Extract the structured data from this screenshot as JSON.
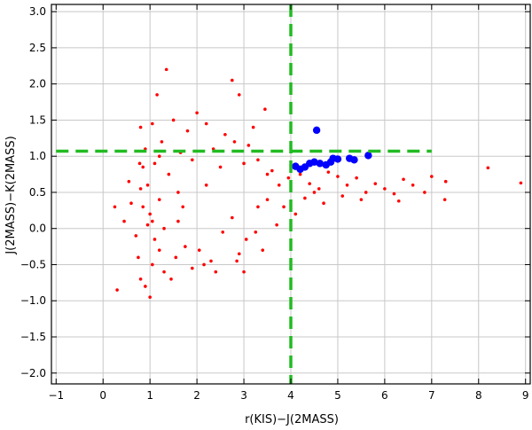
{
  "chart_data": {
    "type": "scatter",
    "title": "",
    "xlabel": "r(KIS)−J(2MASS)",
    "ylabel": "J(2MASS)−K(2MASS)",
    "xlim": [
      -1.1,
      9.1
    ],
    "ylim": [
      -2.15,
      3.1
    ],
    "x_ticks": [
      -1,
      0,
      1,
      2,
      3,
      4,
      5,
      6,
      7,
      8,
      9
    ],
    "x_tick_labels": [
      "−1",
      "0",
      "1",
      "2",
      "3",
      "4",
      "5",
      "6",
      "7",
      "8",
      "9"
    ],
    "y_ticks": [
      3.0,
      2.5,
      2.0,
      1.5,
      1.0,
      0.5,
      0.0,
      -0.5,
      -1.0,
      -1.5,
      -2.0
    ],
    "y_tick_labels": [
      "3.0",
      "2.5",
      "2.0",
      "1.5",
      "1.0",
      "0.5",
      "0.0",
      "−0.5",
      "−1.0",
      "−1.5",
      "−2.0"
    ],
    "grid": true,
    "colors": {
      "field": "#ff0000",
      "selected": "#0000ff",
      "cut": "#22bb22",
      "grid": "#c8c8c8"
    },
    "cuts": {
      "vertical_x": 4.0,
      "horizontal_y": 1.07,
      "horizontal_xrange": [
        -1.0,
        7.0
      ]
    },
    "series": [
      {
        "role": "field",
        "points": [
          [
            1.35,
            2.2
          ],
          [
            2.75,
            2.05
          ],
          [
            1.15,
            1.85
          ],
          [
            2.9,
            1.85
          ],
          [
            3.45,
            1.65
          ],
          [
            2.2,
            1.45
          ],
          [
            1.05,
            1.45
          ],
          [
            1.5,
            1.5
          ],
          [
            0.8,
            1.4
          ],
          [
            3.2,
            1.4
          ],
          [
            0.55,
            0.65
          ],
          [
            0.25,
            0.3
          ],
          [
            0.3,
            -0.85
          ],
          [
            0.45,
            0.1
          ],
          [
            0.6,
            0.35
          ],
          [
            0.7,
            -0.1
          ],
          [
            0.75,
            -0.4
          ],
          [
            0.8,
            -0.7
          ],
          [
            0.9,
            -0.8
          ],
          [
            1.0,
            -0.95
          ],
          [
            1.05,
            -0.5
          ],
          [
            1.2,
            -0.3
          ],
          [
            1.3,
            -0.6
          ],
          [
            1.45,
            -0.7
          ],
          [
            1.55,
            -0.4
          ],
          [
            1.75,
            -0.25
          ],
          [
            1.9,
            -0.55
          ],
          [
            2.05,
            -0.3
          ],
          [
            2.3,
            -0.45
          ],
          [
            2.55,
            -0.05
          ],
          [
            2.75,
            0.15
          ],
          [
            2.85,
            -0.45
          ],
          [
            3.05,
            -0.15
          ],
          [
            3.25,
            -0.05
          ],
          [
            3.3,
            0.3
          ],
          [
            3.5,
            0.4
          ],
          [
            3.7,
            0.05
          ],
          [
            2.15,
            -0.5
          ],
          [
            2.4,
            -0.6
          ],
          [
            3.0,
            -0.6
          ],
          [
            1.1,
            -0.15
          ],
          [
            0.95,
            0.05
          ],
          [
            1.6,
            0.1
          ],
          [
            1.7,
            0.3
          ],
          [
            3.4,
            -0.3
          ],
          [
            2.9,
            -0.35
          ],
          [
            3.75,
            0.6
          ],
          [
            3.95,
            0.7
          ],
          [
            4.2,
            0.75
          ],
          [
            4.4,
            0.62
          ],
          [
            4.6,
            0.55
          ],
          [
            4.8,
            0.78
          ],
          [
            5.0,
            0.72
          ],
          [
            5.2,
            0.6
          ],
          [
            5.4,
            0.7
          ],
          [
            5.6,
            0.5
          ],
          [
            5.8,
            0.62
          ],
          [
            6.0,
            0.55
          ],
          [
            6.2,
            0.48
          ],
          [
            6.4,
            0.68
          ],
          [
            6.6,
            0.6
          ],
          [
            6.85,
            0.5
          ],
          [
            7.0,
            0.72
          ],
          [
            7.3,
            0.65
          ],
          [
            7.28,
            0.4
          ],
          [
            8.2,
            0.84
          ],
          [
            8.9,
            0.63
          ],
          [
            4.3,
            0.42
          ],
          [
            4.7,
            0.35
          ],
          [
            5.1,
            0.45
          ],
          [
            5.5,
            0.4
          ],
          [
            6.3,
            0.38
          ],
          [
            4.1,
            0.2
          ],
          [
            3.85,
            0.3
          ],
          [
            4.5,
            0.5
          ],
          [
            3.6,
            0.8
          ],
          [
            3.3,
            0.95
          ],
          [
            3.1,
            1.15
          ],
          [
            2.6,
            1.3
          ],
          [
            2.0,
            1.6
          ],
          [
            1.8,
            1.35
          ],
          [
            1.25,
            1.2
          ],
          [
            0.9,
            1.1
          ],
          [
            0.85,
            0.85
          ],
          [
            0.8,
            0.55
          ],
          [
            0.85,
            0.3
          ],
          [
            0.95,
            0.6
          ],
          [
            1.1,
            0.9
          ],
          [
            1.4,
            0.75
          ],
          [
            1.9,
            0.95
          ],
          [
            2.5,
            0.85
          ],
          [
            3.0,
            0.9
          ],
          [
            3.5,
            0.75
          ],
          [
            2.2,
            0.6
          ],
          [
            1.6,
            0.5
          ],
          [
            1.2,
            0.4
          ],
          [
            1.0,
            0.2
          ],
          [
            1.3,
            0.0
          ],
          [
            1.05,
            0.1
          ],
          [
            0.78,
            0.9
          ],
          [
            1.2,
            1.0
          ],
          [
            1.65,
            1.05
          ],
          [
            2.35,
            1.1
          ],
          [
            2.8,
            1.2
          ]
        ]
      },
      {
        "role": "selected",
        "points": [
          [
            4.1,
            0.86
          ],
          [
            4.2,
            0.82
          ],
          [
            4.3,
            0.85
          ],
          [
            4.4,
            0.9
          ],
          [
            4.5,
            0.92
          ],
          [
            4.62,
            0.9
          ],
          [
            4.75,
            0.88
          ],
          [
            4.85,
            0.92
          ],
          [
            4.9,
            0.97
          ],
          [
            5.0,
            0.96
          ],
          [
            5.25,
            0.97
          ],
          [
            5.35,
            0.95
          ],
          [
            5.65,
            1.01
          ],
          [
            4.55,
            1.36
          ]
        ]
      }
    ]
  }
}
